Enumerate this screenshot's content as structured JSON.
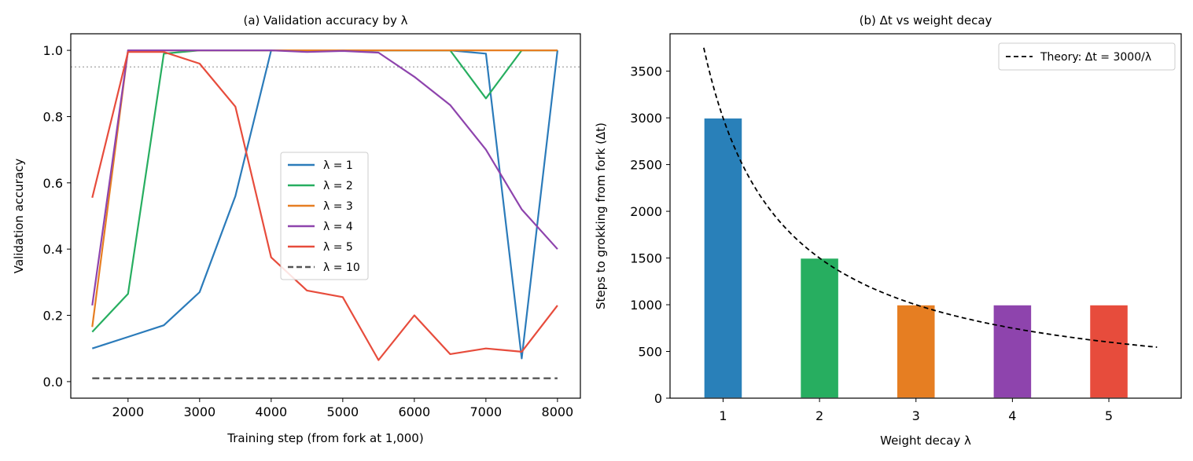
{
  "chart_data": [
    {
      "type": "line",
      "title": "(a) Validation accuracy by λ",
      "xlabel": "Training step (from fork at 1,000)",
      "ylabel": "Validation accuracy",
      "xlim": [
        1200,
        8320
      ],
      "ylim": [
        -0.05,
        1.05
      ],
      "xticks": [
        2000,
        3000,
        4000,
        5000,
        6000,
        7000,
        8000
      ],
      "yticks": [
        0.0,
        0.2,
        0.4,
        0.6,
        0.8,
        1.0
      ],
      "ytick_labels": [
        "0.0",
        "0.2",
        "0.4",
        "0.6",
        "0.8",
        "1.0"
      ],
      "x": [
        1500,
        2000,
        2500,
        3000,
        3500,
        4000,
        4500,
        5000,
        5500,
        6000,
        6500,
        7000,
        7500,
        8000
      ],
      "reference_line": {
        "y": 0.95,
        "style": "dotted",
        "color": "#999999"
      },
      "legend_position": "center-right",
      "series": [
        {
          "name": "λ = 1",
          "color": "#2b7bba",
          "dash": "solid",
          "values": [
            0.1,
            0.135,
            0.17,
            0.27,
            0.56,
            1.0,
            1.0,
            1.0,
            1.0,
            1.0,
            1.0,
            0.99,
            0.07,
            1.0
          ]
        },
        {
          "name": "λ = 2",
          "color": "#27ae60",
          "dash": "solid",
          "values": [
            0.15,
            0.265,
            0.99,
            1.0,
            1.0,
            1.0,
            1.0,
            1.0,
            1.0,
            1.0,
            1.0,
            0.855,
            1.0,
            1.0
          ]
        },
        {
          "name": "λ = 3",
          "color": "#e67e22",
          "dash": "solid",
          "values": [
            0.165,
            1.0,
            1.0,
            1.0,
            1.0,
            1.0,
            1.0,
            1.0,
            1.0,
            1.0,
            1.0,
            1.0,
            1.0,
            1.0
          ]
        },
        {
          "name": "λ = 4",
          "color": "#8e44ad",
          "dash": "solid",
          "values": [
            0.23,
            1.0,
            1.0,
            1.0,
            1.0,
            1.0,
            0.995,
            0.998,
            0.993,
            0.92,
            0.835,
            0.7,
            0.52,
            0.4
          ]
        },
        {
          "name": "λ = 5",
          "color": "#e74c3c",
          "dash": "solid",
          "values": [
            0.555,
            0.995,
            0.995,
            0.96,
            0.83,
            0.375,
            0.275,
            0.255,
            0.065,
            0.2,
            0.083,
            0.1,
            0.09,
            0.23
          ]
        },
        {
          "name": "λ = 10",
          "color": "#555555",
          "dash": "dashed",
          "values": [
            0.01,
            0.01,
            0.01,
            0.01,
            0.01,
            0.01,
            0.01,
            0.01,
            0.01,
            0.01,
            0.01,
            0.01,
            0.01,
            0.01
          ]
        }
      ]
    },
    {
      "type": "bar",
      "title": "(b) Δt vs weight decay",
      "xlabel": "Weight decay λ",
      "ylabel": "Steps to grokking from fork (Δt)",
      "categories": [
        "1",
        "2",
        "3",
        "4",
        "5"
      ],
      "values": [
        3000,
        1500,
        1000,
        1000,
        1000
      ],
      "colors": [
        "#2980b9",
        "#27ae60",
        "#e67e22",
        "#8e44ad",
        "#e74c3c"
      ],
      "xlim": [
        0.45,
        5.75
      ],
      "ylim": [
        0,
        3900
      ],
      "yticks": [
        0,
        500,
        1000,
        1500,
        2000,
        2500,
        3000,
        3500
      ],
      "theory_curve": {
        "name": "Theory: Δt = 3000/λ",
        "numerator": 3000,
        "x_from": 0.8,
        "x_to": 5.5,
        "style": "dashed",
        "color": "#000000"
      },
      "legend_position": "top-right"
    }
  ]
}
